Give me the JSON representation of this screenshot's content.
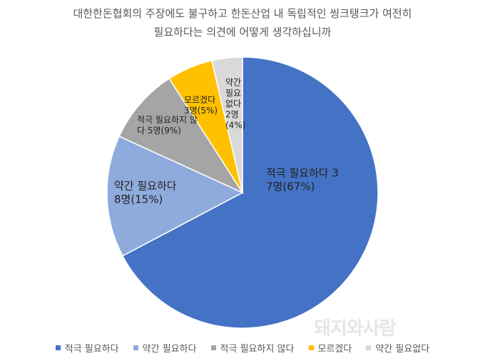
{
  "chart_data": {
    "type": "pie",
    "title": [
      "대한한돈협회의 주장에도 불구하고 한돈산업 내 독립적인 씽크탱크가 여전히",
      "필요하다는 의견에 어떻게 생각하십니까"
    ],
    "categories": [
      "적극 필요하다",
      "약간 필요하다",
      "적극 필요하지 않다",
      "모르겠다",
      "약간 필요없다"
    ],
    "values": [
      37,
      8,
      5,
      3,
      2
    ],
    "value_labels": [
      "37명(67%)",
      "8명(15%)",
      "5명(9%)",
      "3명(5%)",
      "2명(4%)"
    ],
    "colors": [
      "#4472c4",
      "#8faadc",
      "#a5a5a5",
      "#ffc000",
      "#d9d9d9"
    ],
    "legend": "bottom",
    "watermark": "돼지와사람"
  }
}
